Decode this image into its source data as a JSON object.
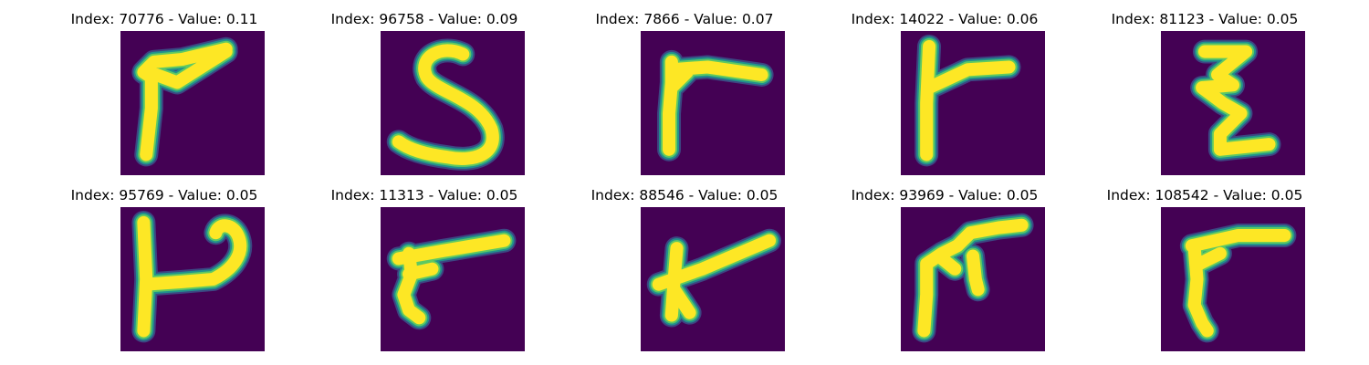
{
  "colors": {
    "background": "#440154",
    "stroke_core": "#fde725",
    "stroke_mid": "#5ec962",
    "stroke_edge": "#21918c",
    "stroke_fringe": "#3b528b"
  },
  "panels": [
    {
      "title": "Index: 70776 - Value: 0.11",
      "index": "70776",
      "value": "0.11"
    },
    {
      "title": "Index: 96758 - Value: 0.09",
      "index": "96758",
      "value": "0.09"
    },
    {
      "title": "Index: 7866 - Value: 0.07",
      "index": "7866",
      "value": "0.07"
    },
    {
      "title": "Index: 14022 - Value: 0.06",
      "index": "14022",
      "value": "0.06"
    },
    {
      "title": "Index: 81123 - Value: 0.05",
      "index": "81123",
      "value": "0.05"
    },
    {
      "title": "Index: 95769 - Value: 0.05",
      "index": "95769",
      "value": "0.05"
    },
    {
      "title": "Index: 11313 - Value: 0.05",
      "index": "11313",
      "value": "0.05"
    },
    {
      "title": "Index: 88546 - Value: 0.05",
      "index": "88546",
      "value": "0.05"
    },
    {
      "title": "Index: 93969 - Value: 0.05",
      "index": "93969",
      "value": "0.05"
    },
    {
      "title": "Index: 108542 - Value: 0.05",
      "index": "108542",
      "value": "0.05"
    }
  ]
}
